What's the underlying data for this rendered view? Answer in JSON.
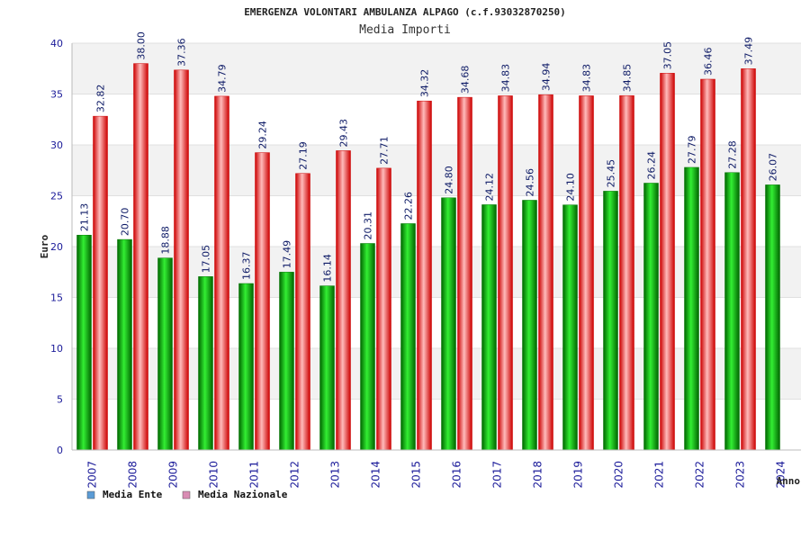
{
  "chart_data": {
    "type": "bar",
    "title": "EMERGENZA VOLONTARI AMBULANZA ALPAGO (c.f.93032870250)",
    "subtitle": "Media Importi",
    "xlabel": "Anno",
    "ylabel": "Euro",
    "ylim": [
      0,
      40
    ],
    "yticks": [
      0,
      5,
      10,
      15,
      20,
      25,
      30,
      35,
      40
    ],
    "categories": [
      "2007",
      "2008",
      "2009",
      "2010",
      "2011",
      "2012",
      "2013",
      "2014",
      "2015",
      "2016",
      "2017",
      "2018",
      "2019",
      "2020",
      "2021",
      "2022",
      "2023",
      "2024"
    ],
    "series": [
      {
        "name": "Media Ente",
        "color": "#00aa00",
        "legend_color": "#5b9bd5",
        "values": [
          21.13,
          20.7,
          18.88,
          17.05,
          16.37,
          17.49,
          16.14,
          20.31,
          22.26,
          24.8,
          24.12,
          24.56,
          24.1,
          25.45,
          26.24,
          27.79,
          27.28,
          26.07
        ],
        "labels": [
          "21.13",
          "20.70",
          "18.88",
          "17.05",
          "16.37",
          "17.49",
          "16.14",
          "20.31",
          "22.26",
          "24.80",
          "24.12",
          "24.56",
          "24.10",
          "25.45",
          "26.24",
          "27.79",
          "27.28",
          "26.07"
        ]
      },
      {
        "name": "Media Nazionale",
        "color": "#ee2222",
        "legend_color": "#d98cb3",
        "values": [
          32.82,
          38.0,
          37.36,
          34.79,
          29.24,
          27.19,
          29.43,
          27.71,
          34.32,
          34.68,
          34.83,
          34.94,
          34.83,
          34.85,
          37.05,
          36.46,
          37.49,
          null
        ],
        "labels": [
          "32.82",
          "38.00",
          "37.36",
          "34.79",
          "29.24",
          "27.19",
          "29.43",
          "27.71",
          "34.32",
          "34.68",
          "34.83",
          "34.94",
          "34.83",
          "34.85",
          "37.05",
          "36.46",
          "37.49",
          null
        ]
      }
    ],
    "grid": true,
    "legend_position": "bottom-left"
  }
}
